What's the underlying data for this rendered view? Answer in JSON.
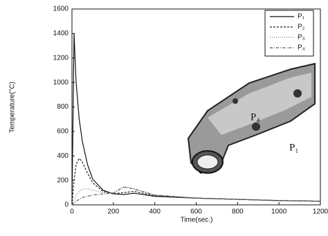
{
  "chart_data": {
    "type": "line",
    "xlabel": "Time(sec.)",
    "ylabel": "Temperature(°C)",
    "x": [
      0,
      10,
      20,
      35,
      50,
      75,
      100,
      150,
      200,
      250,
      300,
      400,
      600,
      800,
      1000,
      1200
    ],
    "series": [
      {
        "name": "P₁",
        "color": "#111111",
        "dash": "none",
        "values": [
          0,
          1400,
          1000,
          700,
          520,
          330,
          210,
          120,
          90,
          85,
          95,
          70,
          55,
          45,
          35,
          30
        ]
      },
      {
        "name": "P₂",
        "color": "#222222",
        "dash": "3,2",
        "values": [
          0,
          200,
          330,
          380,
          350,
          260,
          180,
          110,
          90,
          100,
          110,
          75,
          55,
          45,
          35,
          30
        ]
      },
      {
        "name": "P₃",
        "color": "#777777",
        "dash": "1,2",
        "values": [
          0,
          40,
          80,
          110,
          130,
          130,
          120,
          100,
          100,
          150,
          130,
          80,
          55,
          45,
          35,
          30
        ]
      },
      {
        "name": "P₄",
        "color": "#555555",
        "dash": "4,2,1,2",
        "values": [
          0,
          15,
          30,
          45,
          60,
          70,
          80,
          90,
          95,
          145,
          130,
          80,
          55,
          45,
          35,
          30
        ]
      }
    ],
    "xlim": [
      0,
      1200
    ],
    "xticks": [
      0,
      200,
      400,
      600,
      800,
      1000,
      1200
    ],
    "ylim": [
      0,
      1600
    ],
    "yticks": [
      0,
      200,
      400,
      600,
      800,
      1000,
      1200,
      1400,
      1600
    ],
    "annotations": [
      "P₄",
      "P₁"
    ]
  }
}
